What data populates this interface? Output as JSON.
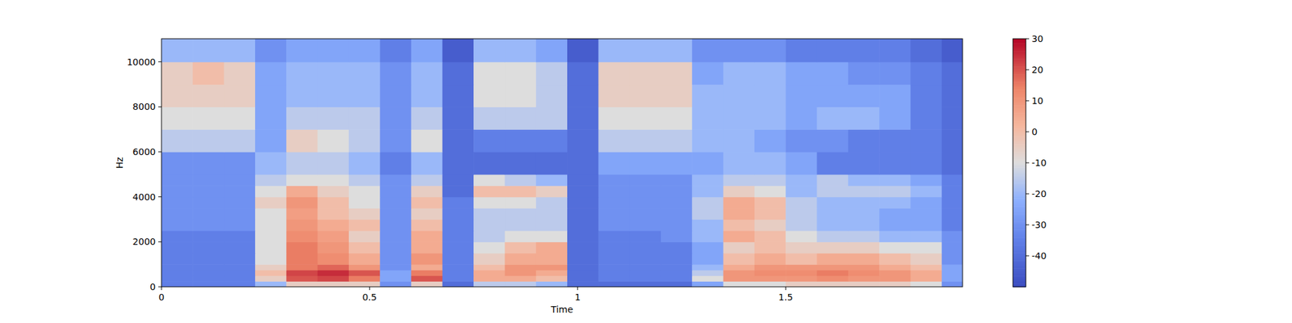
{
  "chart_data": {
    "type": "heatmap",
    "x_label": "Time",
    "y_label": "Hz",
    "color": "coolwarm",
    "xlim": [
      0,
      1.925
    ],
    "ylim": [
      0,
      11025
    ],
    "xticks": [
      0,
      0.5,
      1,
      1.5
    ],
    "yticks": [
      0,
      2000,
      4000,
      6000,
      8000,
      10000
    ],
    "color_range": [
      -50,
      30
    ],
    "color_ticks": [
      -40,
      -30,
      -20,
      -10,
      0,
      10,
      20,
      30
    ],
    "x_edges": [
      0,
      0.075,
      0.15,
      0.225,
      0.3,
      0.375,
      0.45,
      0.525,
      0.6,
      0.675,
      0.75,
      0.825,
      0.9,
      0.975,
      1.05,
      1.125,
      1.2,
      1.275,
      1.35,
      1.425,
      1.5,
      1.575,
      1.65,
      1.725,
      1.8,
      1.875,
      1.925
    ],
    "y_edges": [
      0,
      250,
      500,
      750,
      1000,
      1500,
      2000,
      2500,
      3000,
      3500,
      4000,
      4500,
      5000,
      6000,
      7000,
      8000,
      9000,
      10000,
      11025
    ],
    "z": [
      [
        -35,
        -35,
        -35,
        -20,
        -5,
        -5,
        -5,
        -30,
        -5,
        -40,
        -15,
        -15,
        -20,
        -40,
        -40,
        -40,
        -40,
        -25,
        -10,
        -10,
        -5,
        -5,
        -5,
        -5,
        -10,
        -30
      ],
      [
        -35,
        -35,
        -35,
        -5,
        20,
        22,
        15,
        -25,
        20,
        -35,
        5,
        5,
        0,
        -40,
        -35,
        -35,
        -35,
        -10,
        10,
        10,
        10,
        12,
        10,
        10,
        5,
        -25
      ],
      [
        -35,
        -35,
        -35,
        0,
        22,
        25,
        20,
        -25,
        15,
        -35,
        5,
        10,
        5,
        -40,
        -35,
        -35,
        -35,
        -15,
        10,
        12,
        12,
        15,
        12,
        10,
        5,
        -25
      ],
      [
        -35,
        -35,
        -35,
        -5,
        15,
        18,
        10,
        -30,
        5,
        -35,
        0,
        10,
        10,
        -40,
        -35,
        -35,
        -35,
        -20,
        5,
        10,
        10,
        10,
        10,
        5,
        0,
        -25
      ],
      [
        -35,
        -35,
        -35,
        -10,
        15,
        12,
        5,
        -30,
        10,
        -35,
        -5,
        5,
        5,
        -40,
        -35,
        -35,
        -35,
        -25,
        0,
        5,
        0,
        5,
        5,
        0,
        -5,
        -30
      ],
      [
        -35,
        -35,
        -35,
        -10,
        15,
        10,
        0,
        -30,
        5,
        -35,
        -10,
        0,
        5,
        -40,
        -35,
        -35,
        -35,
        -25,
        -5,
        0,
        -5,
        -5,
        -5,
        -10,
        -10,
        -30
      ],
      [
        -35,
        -35,
        -35,
        -10,
        12,
        8,
        -5,
        -30,
        5,
        -35,
        -15,
        -10,
        -10,
        -40,
        -35,
        -35,
        -30,
        -20,
        5,
        0,
        -10,
        -15,
        -15,
        -20,
        -20,
        -30
      ],
      [
        -30,
        -30,
        -30,
        -10,
        10,
        5,
        0,
        -30,
        0,
        -35,
        -15,
        -15,
        -15,
        -40,
        -30,
        -30,
        -30,
        -20,
        0,
        -5,
        -15,
        -20,
        -20,
        -25,
        -25,
        -35
      ],
      [
        -30,
        -30,
        -30,
        -10,
        8,
        0,
        -5,
        -30,
        -5,
        -35,
        -15,
        -15,
        -15,
        -40,
        -30,
        -30,
        -30,
        -15,
        5,
        0,
        -15,
        -20,
        -20,
        -25,
        -25,
        -35
      ],
      [
        -30,
        -30,
        -30,
        -5,
        10,
        0,
        -10,
        -30,
        0,
        -35,
        -10,
        -10,
        -15,
        -40,
        -30,
        -30,
        -30,
        -15,
        5,
        0,
        -15,
        -20,
        -20,
        -20,
        -25,
        -35
      ],
      [
        -30,
        -30,
        -30,
        -10,
        5,
        -5,
        -10,
        -30,
        -5,
        -40,
        0,
        0,
        -5,
        -40,
        -30,
        -30,
        -30,
        -20,
        -5,
        -10,
        -20,
        -15,
        -15,
        -15,
        -20,
        -35
      ],
      [
        -30,
        -30,
        -30,
        -15,
        -10,
        -10,
        -15,
        -30,
        -15,
        -40,
        -10,
        -15,
        -20,
        -40,
        -30,
        -30,
        -30,
        -20,
        -15,
        -15,
        -20,
        -15,
        -20,
        -20,
        -25,
        -35
      ],
      [
        -30,
        -30,
        -30,
        -20,
        -15,
        -15,
        -20,
        -35,
        -20,
        -40,
        -40,
        -40,
        -40,
        -40,
        -25,
        -25,
        -25,
        -25,
        -20,
        -20,
        -25,
        -35,
        -35,
        -35,
        -35,
        -40
      ],
      [
        -15,
        -15,
        -15,
        -25,
        -5,
        -10,
        -15,
        -30,
        -10,
        -40,
        -35,
        -35,
        -35,
        -40,
        -15,
        -15,
        -15,
        -20,
        -20,
        -25,
        -30,
        -30,
        -35,
        -35,
        -35,
        -40
      ],
      [
        -10,
        -10,
        -10,
        -25,
        -15,
        -15,
        -15,
        -30,
        -15,
        -40,
        -15,
        -15,
        -15,
        -40,
        -10,
        -10,
        -10,
        -20,
        -20,
        -20,
        -25,
        -20,
        -20,
        -25,
        -35,
        -40
      ],
      [
        -5,
        -5,
        -5,
        -25,
        -20,
        -20,
        -20,
        -30,
        -20,
        -40,
        -10,
        -10,
        -15,
        -40,
        -5,
        -5,
        -5,
        -20,
        -20,
        -20,
        -25,
        -25,
        -25,
        -25,
        -35,
        -40
      ],
      [
        -5,
        0,
        -5,
        -25,
        -20,
        -20,
        -20,
        -30,
        -20,
        -40,
        -10,
        -10,
        -15,
        -40,
        -5,
        -5,
        -5,
        -25,
        -20,
        -20,
        -25,
        -25,
        -30,
        -30,
        -35,
        -40
      ],
      [
        -20,
        -20,
        -20,
        -30,
        -25,
        -25,
        -25,
        -35,
        -25,
        -45,
        -20,
        -20,
        -25,
        -45,
        -20,
        -20,
        -20,
        -30,
        -30,
        -30,
        -35,
        -35,
        -35,
        -35,
        -40,
        -45
      ]
    ]
  }
}
